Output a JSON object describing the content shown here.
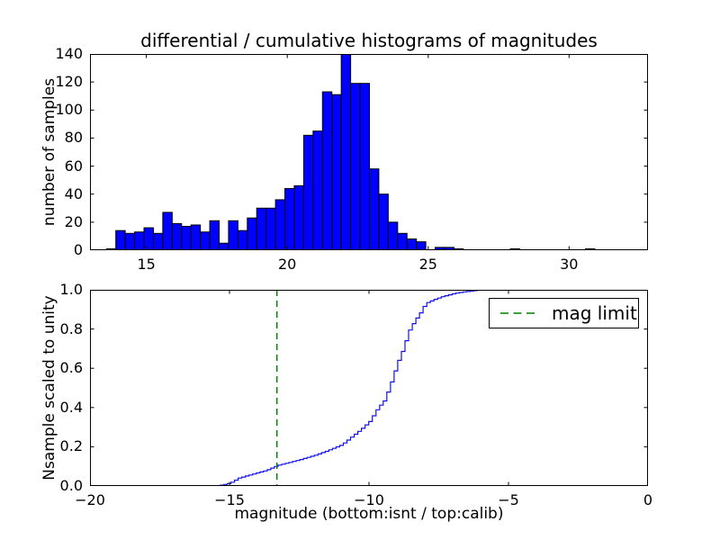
{
  "figure": {
    "title": "differential / cumulative histograms of magnitudes",
    "background_color": "#ffffff",
    "frame_color": "#000000"
  },
  "chart_data": [
    {
      "type": "bar",
      "subtype": "histogram-differential",
      "title": "differential / cumulative histograms of magnitudes",
      "ylabel": "number of samples",
      "xlabel": "",
      "xlim": [
        13.0,
        32.8
      ],
      "ylim": [
        0,
        140
      ],
      "grid": false,
      "x_ticks": [
        15,
        20,
        25,
        30
      ],
      "x_tick_labels": [
        "15",
        "20",
        "25",
        "30"
      ],
      "y_ticks": [
        0,
        20,
        40,
        60,
        80,
        100,
        120,
        140
      ],
      "y_tick_labels": [
        "0",
        "20",
        "40",
        "60",
        "80",
        "100",
        "120",
        "140"
      ],
      "bar_color": "#0000ff",
      "bar_edge_color": "#000000",
      "bins": {
        "start": 13.583,
        "width": 0.3333
      },
      "values": [
        1,
        14,
        12,
        13,
        16,
        12,
        27,
        19,
        17,
        18,
        13,
        21,
        5,
        21,
        14,
        23,
        30,
        30,
        36,
        44,
        46,
        82,
        85,
        113,
        111,
        140,
        119,
        119,
        58,
        40,
        20,
        12,
        8,
        6,
        0,
        2,
        2,
        1,
        0,
        0,
        0,
        0,
        0,
        1,
        0,
        0,
        0,
        0,
        0,
        0,
        0,
        1
      ]
    },
    {
      "type": "line",
      "subtype": "cumulative-step",
      "ylabel": "Nsample scaled to unity",
      "xlabel": "magnitude (bottom:isnt / top:calib)",
      "xlim": [
        -20,
        0
      ],
      "ylim": [
        0.0,
        1.0
      ],
      "grid": false,
      "x_ticks": [
        -20,
        -15,
        -10,
        -5,
        0
      ],
      "x_tick_labels": [
        "−20",
        "−15",
        "−10",
        "−5",
        "0"
      ],
      "y_ticks": [
        0.0,
        0.2,
        0.4,
        0.6,
        0.8,
        1.0
      ],
      "y_tick_labels": [
        "0.0",
        "0.2",
        "0.4",
        "0.6",
        "0.8",
        "1.0"
      ],
      "line_color": "#1111ee",
      "step_width": 0.13,
      "points": [
        [
          -20.0,
          0.0
        ],
        [
          -15.55,
          0.0
        ],
        [
          -15.3,
          0.005
        ],
        [
          -15.0,
          0.015
        ],
        [
          -14.7,
          0.04
        ],
        [
          -14.2,
          0.06
        ],
        [
          -13.7,
          0.08
        ],
        [
          -13.3,
          0.105
        ],
        [
          -12.6,
          0.13
        ],
        [
          -12.0,
          0.155
        ],
        [
          -11.6,
          0.175
        ],
        [
          -11.0,
          0.21
        ],
        [
          -10.65,
          0.25
        ],
        [
          -10.3,
          0.29
        ],
        [
          -10.0,
          0.33
        ],
        [
          -9.7,
          0.4
        ],
        [
          -9.5,
          0.43
        ],
        [
          -9.3,
          0.5
        ],
        [
          -9.0,
          0.63
        ],
        [
          -8.8,
          0.7
        ],
        [
          -8.6,
          0.79
        ],
        [
          -8.4,
          0.84
        ],
        [
          -8.2,
          0.88
        ],
        [
          -8.0,
          0.93
        ],
        [
          -7.7,
          0.95
        ],
        [
          -7.4,
          0.965
        ],
        [
          -7.0,
          0.98
        ],
        [
          -6.7,
          0.988
        ],
        [
          -6.3,
          0.995
        ],
        [
          -6.0,
          1.0
        ],
        [
          0.0,
          1.0
        ]
      ],
      "mag_limit_line": {
        "x": -13.3,
        "color": "#008000",
        "style": "dashed",
        "legend_label": "mag limit"
      },
      "legend": {
        "position": "upper right",
        "entries": [
          "mag limit"
        ]
      }
    }
  ]
}
